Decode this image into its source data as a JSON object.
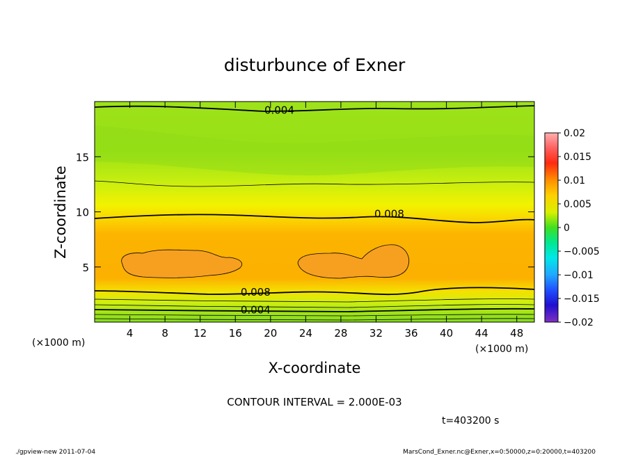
{
  "chart_data": {
    "type": "heatmap",
    "title": "disturbunce of Exner",
    "xlabel": "X-coordinate",
    "ylabel": "Z-coordinate",
    "x_unit_left": "(×1000 m)",
    "x_unit_right": "(×1000 m)",
    "xlim": [
      0,
      50
    ],
    "ylim": [
      0,
      20
    ],
    "xticks": [
      "4",
      "8",
      "12",
      "16",
      "20",
      "24",
      "28",
      "32",
      "36",
      "40",
      "44",
      "48"
    ],
    "yticks": [
      "5",
      "10",
      "15"
    ],
    "colorbar": {
      "range": [
        -0.02,
        0.02
      ],
      "labels": [
        "0.02",
        "0.015",
        "0.01",
        "0.005",
        "0",
        "−0.005",
        "−0.01",
        "−0.015",
        "−0.02"
      ]
    },
    "contour_labels": [
      {
        "text": "0.004",
        "x": 21,
        "z": 19.2
      },
      {
        "text": "0.008",
        "x": 33.5,
        "z": 9.8
      },
      {
        "text": "0.008",
        "x": 18.3,
        "z": 2.7
      },
      {
        "text": "0.004",
        "x": 18.3,
        "z": 1.1
      }
    ],
    "contour_interval": "CONTOUR INTERVAL = 2.000E-03",
    "time": "t=403200 s"
  },
  "footer": {
    "left": "./gpview-new   2011-07-04",
    "right": "MarsCond_Exner.nc@Exner,x=0:50000,z=0:20000,t=403200"
  }
}
